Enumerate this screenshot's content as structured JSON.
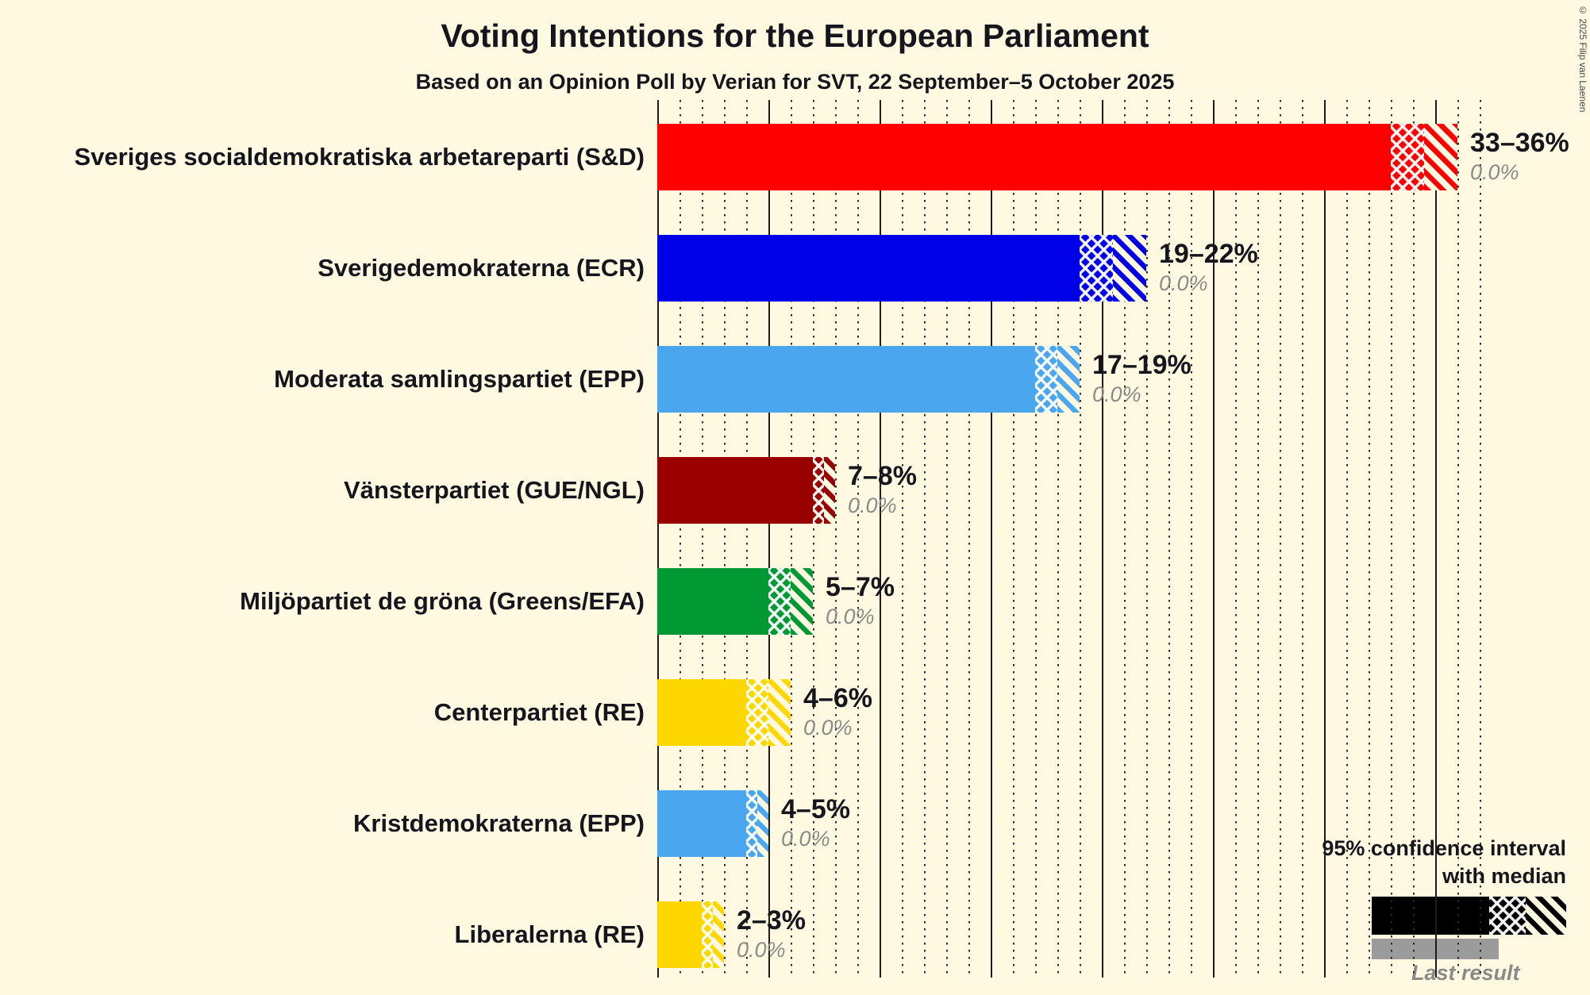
{
  "page": {
    "copyright": "© 2025 Filip van Laenen"
  },
  "legend": {
    "ci_line1": "95% confidence interval",
    "ci_line2": "with median",
    "last_result": "Last result"
  },
  "chart_data": {
    "type": "bar",
    "orientation": "horizontal",
    "title": "Voting Intentions for the European Parliament",
    "subtitle": "Based on an Opinion Poll by Verian for SVT, 22 September–5 October 2025",
    "x_axis": {
      "min": 0,
      "max": 37,
      "unit": "%",
      "major_grid_step": 5,
      "minor_grid_step": 1,
      "grid_style": "major solid, minor dotted"
    },
    "bar_style_note": "solid fill to CI low, crosshatch to median, diagonal hatch to CI high; last result shown as gray value below",
    "bars": [
      {
        "party": "Sveriges socialdemokratiska arbetareparti (S&D)",
        "color": "#FF0000",
        "ci_low": 33,
        "ci_median": 34.5,
        "ci_high": 36,
        "ci_label": "33–36%",
        "last_result": 0.0,
        "last_result_label": "0.0%"
      },
      {
        "party": "Sverigedemokraterna (ECR)",
        "color": "#0000E8",
        "ci_low": 19,
        "ci_median": 20.5,
        "ci_high": 22,
        "ci_label": "19–22%",
        "last_result": 0.0,
        "last_result_label": "0.0%"
      },
      {
        "party": "Moderata samlingspartiet (EPP)",
        "color": "#4BA6F0",
        "ci_low": 17,
        "ci_median": 18,
        "ci_high": 19,
        "ci_label": "17–19%",
        "last_result": 0.0,
        "last_result_label": "0.0%"
      },
      {
        "party": "Vänsterpartiet (GUE/NGL)",
        "color": "#990000",
        "ci_low": 7,
        "ci_median": 7.5,
        "ci_high": 8,
        "ci_label": "7–8%",
        "last_result": 0.0,
        "last_result_label": "0.0%"
      },
      {
        "party": "Miljöpartiet de gröna (Greens/EFA)",
        "color": "#009933",
        "ci_low": 5,
        "ci_median": 6,
        "ci_high": 7,
        "ci_label": "5–7%",
        "last_result": 0.0,
        "last_result_label": "0.0%"
      },
      {
        "party": "Centerpartiet (RE)",
        "color": "#FFD700",
        "ci_low": 4,
        "ci_median": 5,
        "ci_high": 6,
        "ci_label": "4–6%",
        "last_result": 0.0,
        "last_result_label": "0.0%"
      },
      {
        "party": "Kristdemokraterna (EPP)",
        "color": "#4BA6F0",
        "ci_low": 4,
        "ci_median": 4.5,
        "ci_high": 5,
        "ci_label": "4–5%",
        "last_result": 0.0,
        "last_result_label": "0.0%"
      },
      {
        "party": "Liberalerna (RE)",
        "color": "#FFD700",
        "ci_low": 2,
        "ci_median": 2.5,
        "ci_high": 3,
        "ci_label": "2–3%",
        "last_result": 0.0,
        "last_result_label": "0.0%"
      }
    ]
  }
}
